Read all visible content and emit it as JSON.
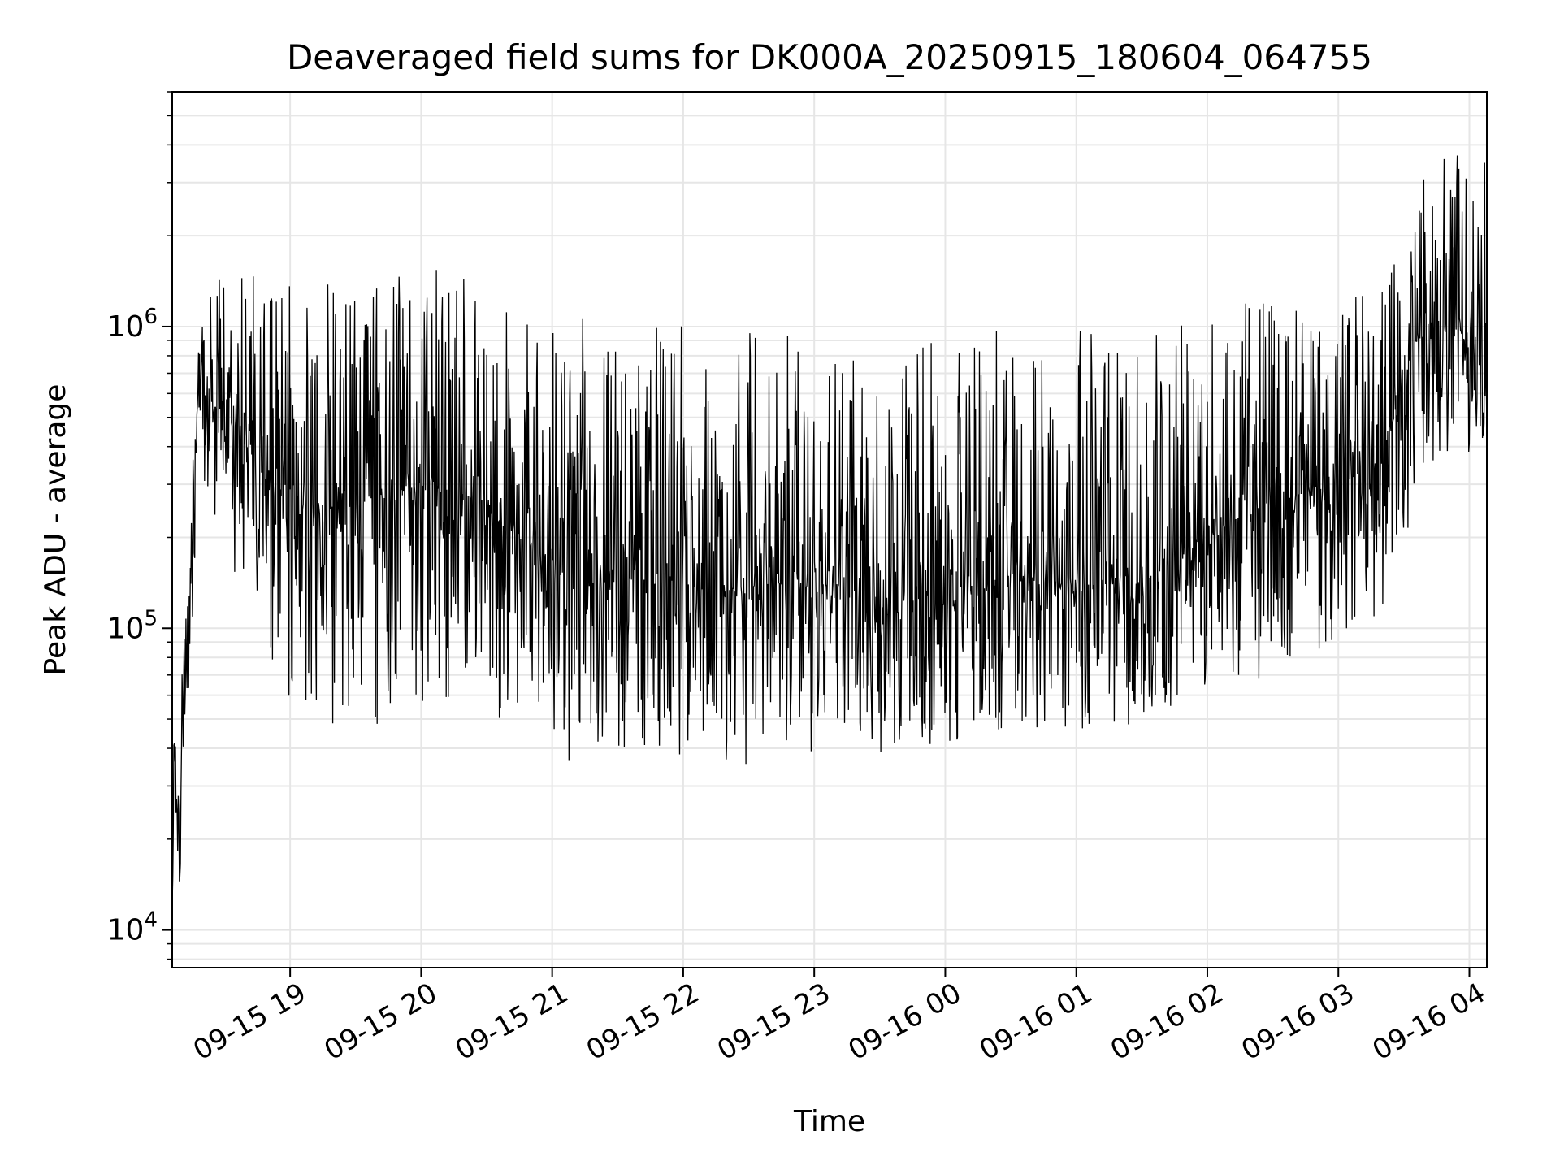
{
  "chart_data": {
    "type": "line",
    "title": "Deaveraged field sums for DK000A_20250915_180604_064755",
    "xlabel": "Time",
    "ylabel": "Peak ADU - average",
    "yscale": "log",
    "ylim": [
      7500,
      6000000
    ],
    "xlim": [
      "2025-09-15 18:06",
      "2025-09-16 04:08"
    ],
    "grid": true,
    "xticks": [
      {
        "t": "2025-09-15 19:00",
        "label": "09-15 19"
      },
      {
        "t": "2025-09-15 20:00",
        "label": "09-15 20"
      },
      {
        "t": "2025-09-15 21:00",
        "label": "09-15 21"
      },
      {
        "t": "2025-09-15 22:00",
        "label": "09-15 22"
      },
      {
        "t": "2025-09-15 23:00",
        "label": "09-15 23"
      },
      {
        "t": "2025-09-16 00:00",
        "label": "09-16 00"
      },
      {
        "t": "2025-09-16 01:00",
        "label": "09-16 01"
      },
      {
        "t": "2025-09-16 02:00",
        "label": "09-16 02"
      },
      {
        "t": "2025-09-16 03:00",
        "label": "09-16 03"
      },
      {
        "t": "2025-09-16 04:00",
        "label": "09-16 04"
      }
    ],
    "yticks": [
      {
        "value": 10000,
        "base": "10",
        "exp": "4"
      },
      {
        "value": 100000,
        "base": "10",
        "exp": "5"
      },
      {
        "value": 1000000,
        "base": "10",
        "exp": "6"
      }
    ],
    "series": [
      {
        "color": "#000000",
        "envelope": [
          {
            "t": "2025-09-15 18:06",
            "low": 12000,
            "mid": 22000,
            "high": 38000
          },
          {
            "t": "2025-09-15 18:10",
            "low": 15000,
            "mid": 28000,
            "high": 60000
          },
          {
            "t": "2025-09-15 18:14",
            "low": 40000,
            "mid": 120000,
            "high": 250000
          },
          {
            "t": "2025-09-15 18:18",
            "low": 300000,
            "mid": 700000,
            "high": 1200000
          },
          {
            "t": "2025-09-15 18:24",
            "low": 250000,
            "mid": 600000,
            "high": 1400000
          },
          {
            "t": "2025-09-15 18:35",
            "low": 150000,
            "mid": 450000,
            "high": 1500000
          },
          {
            "t": "2025-09-15 18:50",
            "low": 80000,
            "mid": 320000,
            "high": 1500000
          },
          {
            "t": "2025-09-15 19:05",
            "low": 50000,
            "mid": 260000,
            "high": 1300000
          },
          {
            "t": "2025-09-15 19:30",
            "low": 45000,
            "mid": 260000,
            "high": 1500000
          },
          {
            "t": "2025-09-15 20:00",
            "low": 55000,
            "mid": 300000,
            "high": 1600000
          },
          {
            "t": "2025-09-15 20:20",
            "low": 60000,
            "mid": 280000,
            "high": 1600000
          },
          {
            "t": "2025-09-15 20:45",
            "low": 45000,
            "mid": 200000,
            "high": 1200000
          },
          {
            "t": "2025-09-15 21:00",
            "low": 35000,
            "mid": 160000,
            "high": 1100000
          },
          {
            "t": "2025-09-15 21:30",
            "low": 40000,
            "mid": 150000,
            "high": 1100000
          },
          {
            "t": "2025-09-15 22:00",
            "low": 38000,
            "mid": 140000,
            "high": 1000000
          },
          {
            "t": "2025-09-15 22:30",
            "low": 35000,
            "mid": 130000,
            "high": 1000000
          },
          {
            "t": "2025-09-15 23:00",
            "low": 38000,
            "mid": 150000,
            "high": 900000
          },
          {
            "t": "2025-09-15 23:30",
            "low": 38000,
            "mid": 110000,
            "high": 850000
          },
          {
            "t": "2025-09-16 00:00",
            "low": 42000,
            "mid": 120000,
            "high": 900000
          },
          {
            "t": "2025-09-16 00:30",
            "low": 45000,
            "mid": 150000,
            "high": 1000000
          },
          {
            "t": "2025-09-16 01:00",
            "low": 45000,
            "mid": 140000,
            "high": 1000000
          },
          {
            "t": "2025-09-16 01:30",
            "low": 48000,
            "mid": 140000,
            "high": 900000
          },
          {
            "t": "2025-09-16 02:00",
            "low": 60000,
            "mid": 200000,
            "high": 1100000
          },
          {
            "t": "2025-09-16 02:30",
            "low": 70000,
            "mid": 260000,
            "high": 1400000
          },
          {
            "t": "2025-09-16 03:00",
            "low": 90000,
            "mid": 300000,
            "high": 1300000
          },
          {
            "t": "2025-09-16 03:20",
            "low": 110000,
            "mid": 350000,
            "high": 1500000
          },
          {
            "t": "2025-09-16 03:35",
            "low": 250000,
            "mid": 900000,
            "high": 3500000
          },
          {
            "t": "2025-09-16 03:50",
            "low": 350000,
            "mid": 1000000,
            "high": 4000000
          },
          {
            "t": "2025-09-16 04:08",
            "low": 400000,
            "mid": 900000,
            "high": 3500000
          }
        ]
      }
    ]
  }
}
